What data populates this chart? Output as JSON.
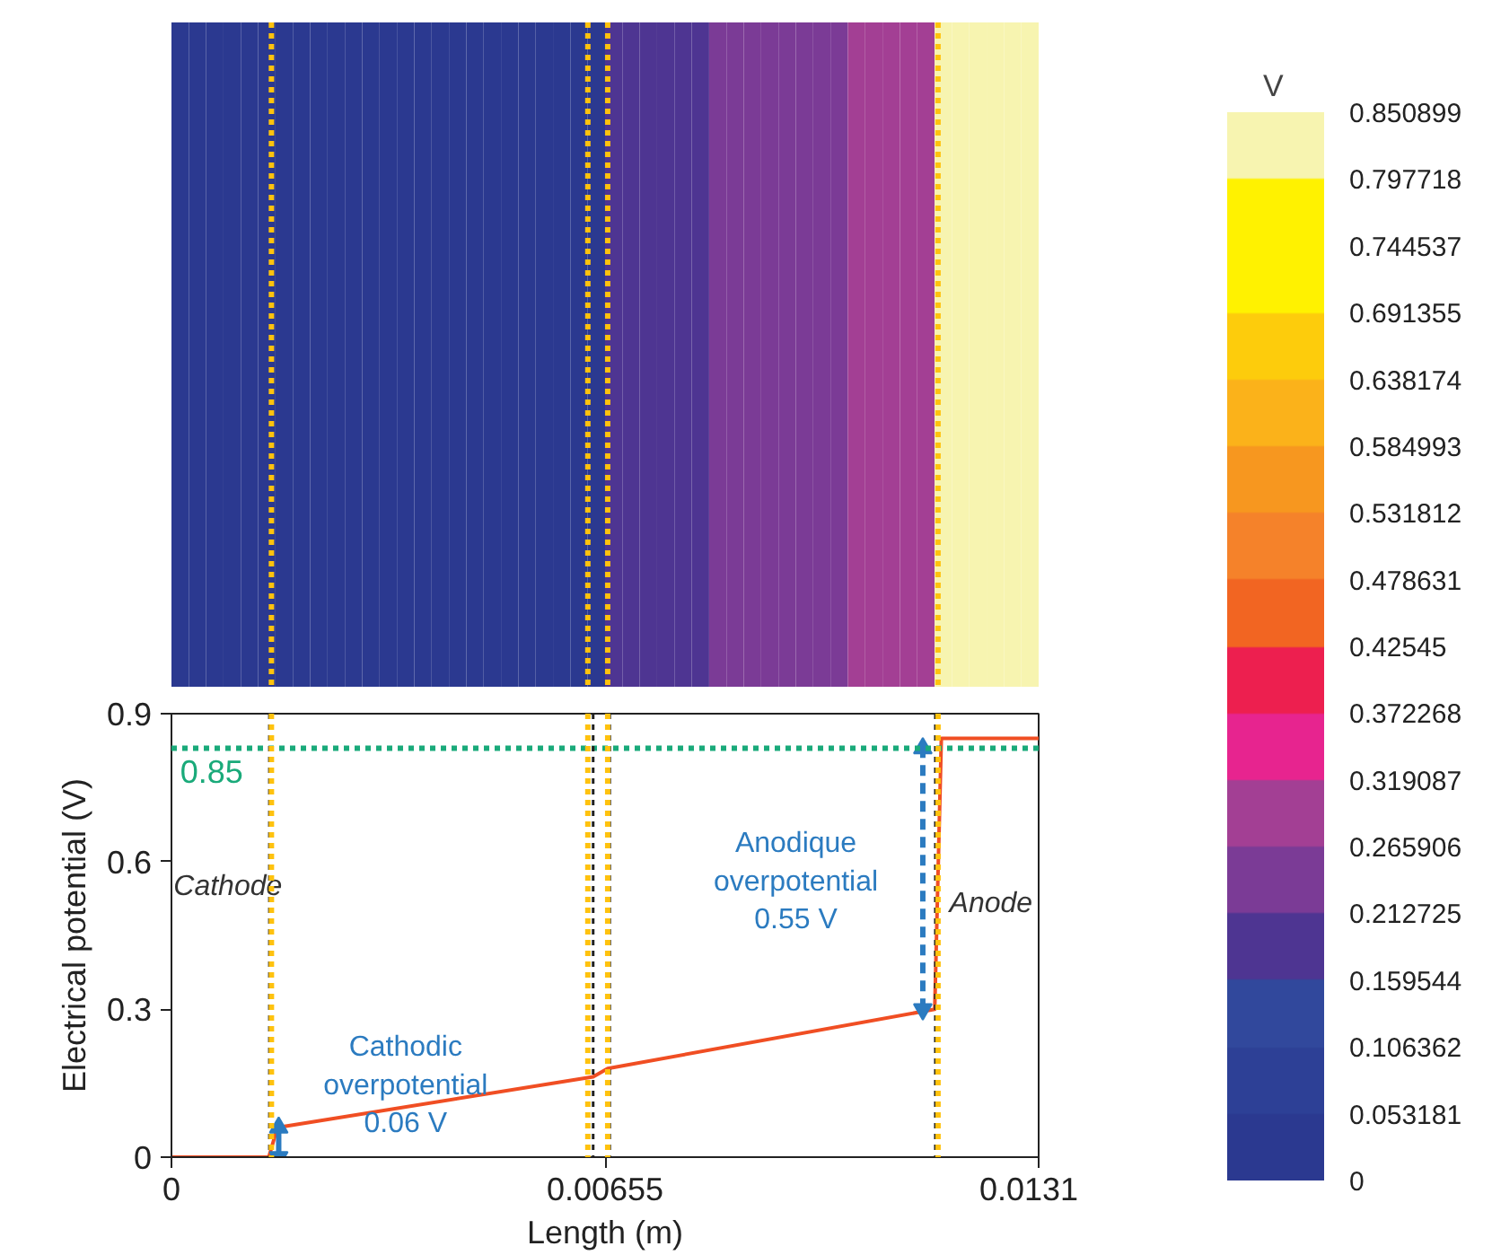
{
  "chart_data": [
    {
      "type": "heatmap",
      "clabel": "V",
      "tick_labels": false,
      "grid": false,
      "categories": [
        null,
        null,
        null,
        null,
        null,
        null,
        null,
        null,
        null,
        null,
        null,
        null,
        null,
        null,
        null,
        null,
        null,
        null,
        null,
        null,
        null,
        null,
        null,
        null,
        null,
        null,
        null,
        null,
        null,
        null,
        null,
        null,
        null,
        null,
        null,
        null,
        null,
        null,
        null,
        null,
        null,
        null,
        null,
        null,
        null,
        null,
        null,
        null,
        null,
        null
      ],
      "y_categories": [
        null
      ],
      "cells": [
        [
          0.03,
          0.03,
          0.03,
          0.03,
          0.03,
          0.03,
          0.03,
          0.03,
          0.03,
          0.03,
          0.03,
          0.03,
          0.03,
          0.03,
          0.03,
          0.03,
          0.03,
          0.03,
          0.03,
          0.03,
          0.03,
          0.03,
          0.03,
          0.03,
          0.03,
          0.18,
          0.18,
          0.18,
          0.18,
          0.18,
          0.18,
          0.24,
          0.24,
          0.24,
          0.24,
          0.24,
          0.24,
          0.24,
          0.24,
          0.29,
          0.29,
          0.29,
          0.29,
          0.29,
          0.82,
          0.82,
          0.82,
          0.82,
          0.82,
          0.82
        ]
      ],
      "clim": [
        0,
        0.850899
      ],
      "cticks": [
        0,
        0.053181,
        0.106362,
        0.159544,
        0.212725,
        0.265906,
        0.319087,
        0.372268,
        0.42545,
        0.478631,
        0.531812,
        0.584993,
        0.638174,
        0.691355,
        0.744537,
        0.797718,
        0.850899
      ],
      "colors": [
        "#2b3990",
        "#2d4096",
        "#31489c",
        "#4e3592",
        "#7b3b96",
        "#a33f94",
        "#e7248f",
        "#ed1f4f",
        "#f26522",
        "#f5822a",
        "#f7971f",
        "#fbb21a",
        "#fdcc0c",
        "#fff200",
        "#fff200",
        "#f7f4b0"
      ]
    },
    {
      "type": "line",
      "xlabel": "Length (m)",
      "ylabel": "Electrical potential (V)",
      "grid": false,
      "xlim": [
        0,
        0.0131
      ],
      "ylim": [
        0,
        0.9
      ],
      "xticks": [
        0,
        0.00655,
        0.0131
      ],
      "yticks": [
        0,
        0.3,
        0.6,
        0.9
      ],
      "series": [
        {
          "type": "line",
          "color": "#f04e23",
          "x": [
            0,
            0.00147,
            0.0016,
            0.00637,
            0.00659,
            0.01153,
            0.01163,
            0.0131
          ],
          "values": [
            0,
            0,
            0.06,
            0.163,
            0.18,
            0.3,
            0.85,
            0.85
          ],
          "marker": "none",
          "line_style": "solid"
        },
        {
          "type": "line",
          "color": "#2b7bc0",
          "x": [
            0.00162,
            0.00162
          ],
          "values": [
            0.0,
            0.06
          ],
          "marker": "triangle",
          "line_style": "solid"
        },
        {
          "type": "line",
          "color": "#2b7bc0",
          "x": [
            0.01135,
            0.01135
          ],
          "values": [
            0.3,
            0.83
          ],
          "marker": "triangle",
          "line_style": "dashed"
        }
      ],
      "ref_lines": [
        {
          "axis": "y",
          "value": 0.83,
          "color": "#1aaa7a",
          "line_style": "dotted"
        },
        {
          "axis": "x",
          "value": 0.00148,
          "color": "#222222",
          "line_style": "dotted"
        },
        {
          "axis": "x",
          "value": 0.00637,
          "color": "#222222",
          "line_style": "dotted"
        },
        {
          "axis": "x",
          "value": 0.00662,
          "color": "#222222",
          "line_style": "dotted"
        },
        {
          "axis": "x",
          "value": 0.01154,
          "color": "#222222",
          "line_style": "dotted"
        },
        {
          "axis": "x",
          "value": 0.00151,
          "color": "#ffc20e",
          "line_style": "dotted"
        },
        {
          "axis": "x",
          "value": 0.00629,
          "color": "#ffc20e",
          "line_style": "dotted"
        },
        {
          "axis": "x",
          "value": 0.00659,
          "color": "#ffc20e",
          "line_style": "dotted"
        },
        {
          "axis": "x",
          "value": 0.01158,
          "color": "#ffc20e",
          "line_style": "dotted"
        }
      ],
      "annotations": [
        "0.85",
        "Cathode",
        "Anode",
        "Anodique\noverpotential\n0.55 V",
        "Cathodic\noverpotential\n0.06 V"
      ]
    }
  ]
}
